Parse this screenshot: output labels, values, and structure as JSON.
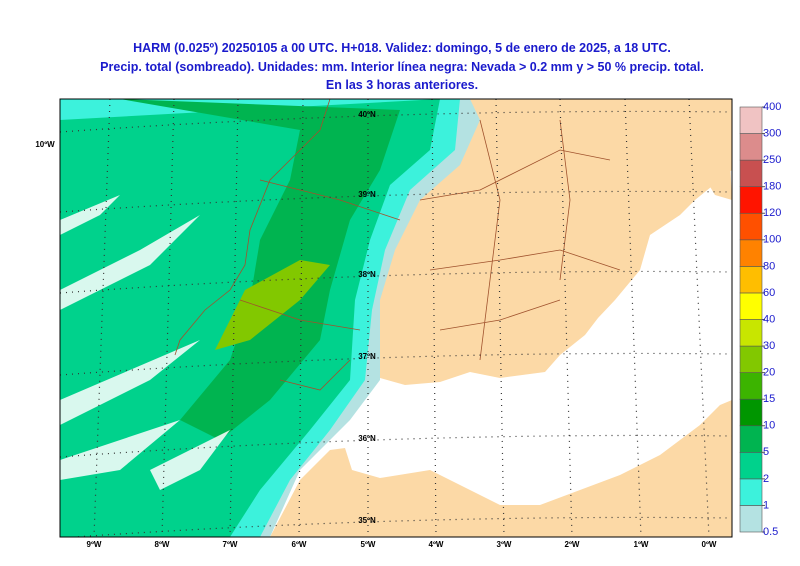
{
  "title": [
    "HARM (0.025º) 20250105 a 00 UTC. H+018. Validez: domingo, 5 de enero de 2025, a 18 UTC.",
    "Precip. total (sombreado). Unidades: mm. Interior línea negra: Nevada > 0.2 mm y > 50 % precip. total.",
    "En las 3 horas anteriores."
  ],
  "map": {
    "lat_labels": [
      "40ºN",
      "39ºN",
      "38ºN",
      "37ºN",
      "36ºN",
      "35ºN"
    ],
    "lon_labels": [
      "10ºW",
      "9ºW",
      "8ºW",
      "7ºW",
      "6ºW",
      "5ºW",
      "4ºW",
      "3ºW",
      "2ºW",
      "1ºW",
      "0ºW"
    ]
  },
  "colorbar": {
    "levels": [
      0.5,
      1,
      2,
      5,
      10,
      15,
      20,
      30,
      40,
      60,
      80,
      100,
      120,
      180,
      250,
      300,
      400
    ],
    "colors": [
      "#b4e2e2",
      "#3cf2dc",
      "#00d28c",
      "#00b450",
      "#009600",
      "#3cb400",
      "#82c800",
      "#c8e600",
      "#ffff00",
      "#ffbe00",
      "#ff8200",
      "#ff5000",
      "#ff1400",
      "#c85050",
      "#dc8c8c",
      "#f0c3c3"
    ]
  }
}
